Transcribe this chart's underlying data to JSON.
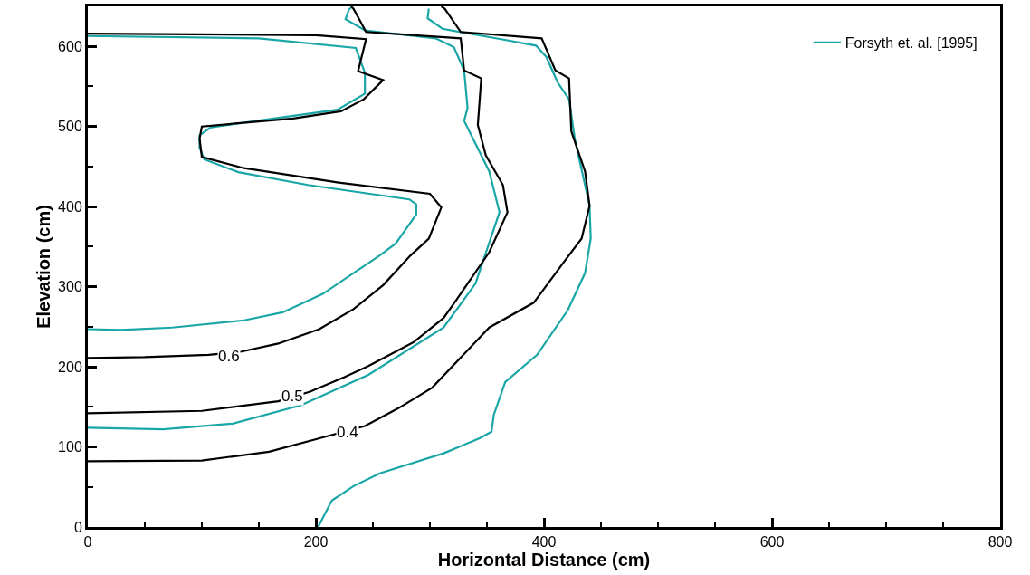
{
  "chart_data": {
    "type": "line",
    "xlabel": "Horizontal Distance (cm)",
    "ylabel": "Elevation (cm)",
    "xlim": [
      0,
      800
    ],
    "xticks": [
      0,
      200,
      400,
      600,
      800
    ],
    "ylim": [
      0,
      650
    ],
    "yticks": [
      0,
      100,
      200,
      300,
      400,
      500,
      600
    ],
    "grid": false,
    "legend": "top right",
    "series": [
      {
        "name": "Forsyth et. al. [1995]",
        "color": "#1aa6a6",
        "x": [
          0,
          29,
          74,
          137,
          171,
          206,
          235,
          256,
          270,
          288,
          288,
          282,
          193,
          132,
          102,
          98,
          98,
          108,
          143,
          219,
          243,
          243,
          235,
          150,
          0
        ],
        "values": [
          247,
          246,
          249,
          258,
          268,
          291,
          319,
          339,
          354,
          390,
          403,
          409,
          427,
          443,
          459,
          474,
          489,
          499,
          506,
          521,
          541,
          567,
          598,
          610,
          613
        ]
      },
      {
        "color": "#1aa6a6",
        "x": [
          0,
          66,
          127,
          187,
          246,
          312,
          340,
          361,
          352,
          330,
          333,
          330,
          321,
          305,
          243,
          226,
          229,
          232
        ],
        "values": [
          124,
          122,
          129,
          152,
          190,
          249,
          304,
          393,
          444,
          507,
          523,
          570,
          599,
          610,
          620,
          634,
          646,
          650
        ]
      },
      {
        "color": "#1aa6a6",
        "x": [
          202,
          214,
          233,
          256,
          312,
          344,
          354,
          356,
          366,
          394,
          421,
          436,
          441,
          440,
          427,
          422,
          412,
          402,
          393,
          370,
          311,
          298,
          299
        ],
        "values": [
          0,
          33,
          51,
          67,
          92,
          111,
          119,
          140,
          181,
          215,
          271,
          317,
          360,
          401,
          485,
          534,
          555,
          587,
          601,
          607,
          622,
          635,
          647
        ]
      },
      {
        "color": "#000000",
        "x": [
          0,
          50,
          106,
          135,
          167,
          203,
          233,
          259,
          283,
          299,
          310,
          300,
          220,
          137,
          100,
          98,
          100,
          180,
          222,
          242,
          259,
          237,
          244,
          200,
          0
        ],
        "values": [
          211,
          212,
          215,
          219,
          229,
          247,
          272,
          302,
          339,
          360,
          399,
          416,
          430,
          448,
          462,
          485,
          500,
          510,
          519,
          534,
          558,
          569,
          609,
          614,
          616
        ]
      },
      {
        "color": "#000000",
        "x": [
          0,
          100,
          167,
          195,
          225,
          246,
          278,
          286,
          312,
          323,
          352,
          368,
          364,
          349,
          342,
          345,
          330,
          327,
          244,
          233,
          231
        ],
        "values": [
          142,
          145,
          157,
          169,
          187,
          201,
          225,
          231,
          261,
          283,
          343,
          393,
          427,
          464,
          502,
          560,
          570,
          610,
          618,
          647,
          650
        ]
      },
      {
        "color": "#000000",
        "x": [
          0,
          100,
          159,
          201,
          243,
          272,
          302,
          352,
          391,
          417,
          433,
          440,
          436,
          424,
          422,
          410,
          398,
          327,
          313,
          310
        ],
        "values": [
          82,
          83,
          94,
          110,
          126,
          148,
          174,
          249,
          280,
          330,
          360,
          401,
          444,
          494,
          560,
          570,
          610,
          618,
          647,
          650
        ]
      }
    ],
    "annotations": [
      {
        "text": "0.6",
        "x": 124,
        "y": 213
      },
      {
        "text": "0.5",
        "x": 179,
        "y": 163
      },
      {
        "text": "0.4",
        "x": 228,
        "y": 118
      }
    ]
  }
}
